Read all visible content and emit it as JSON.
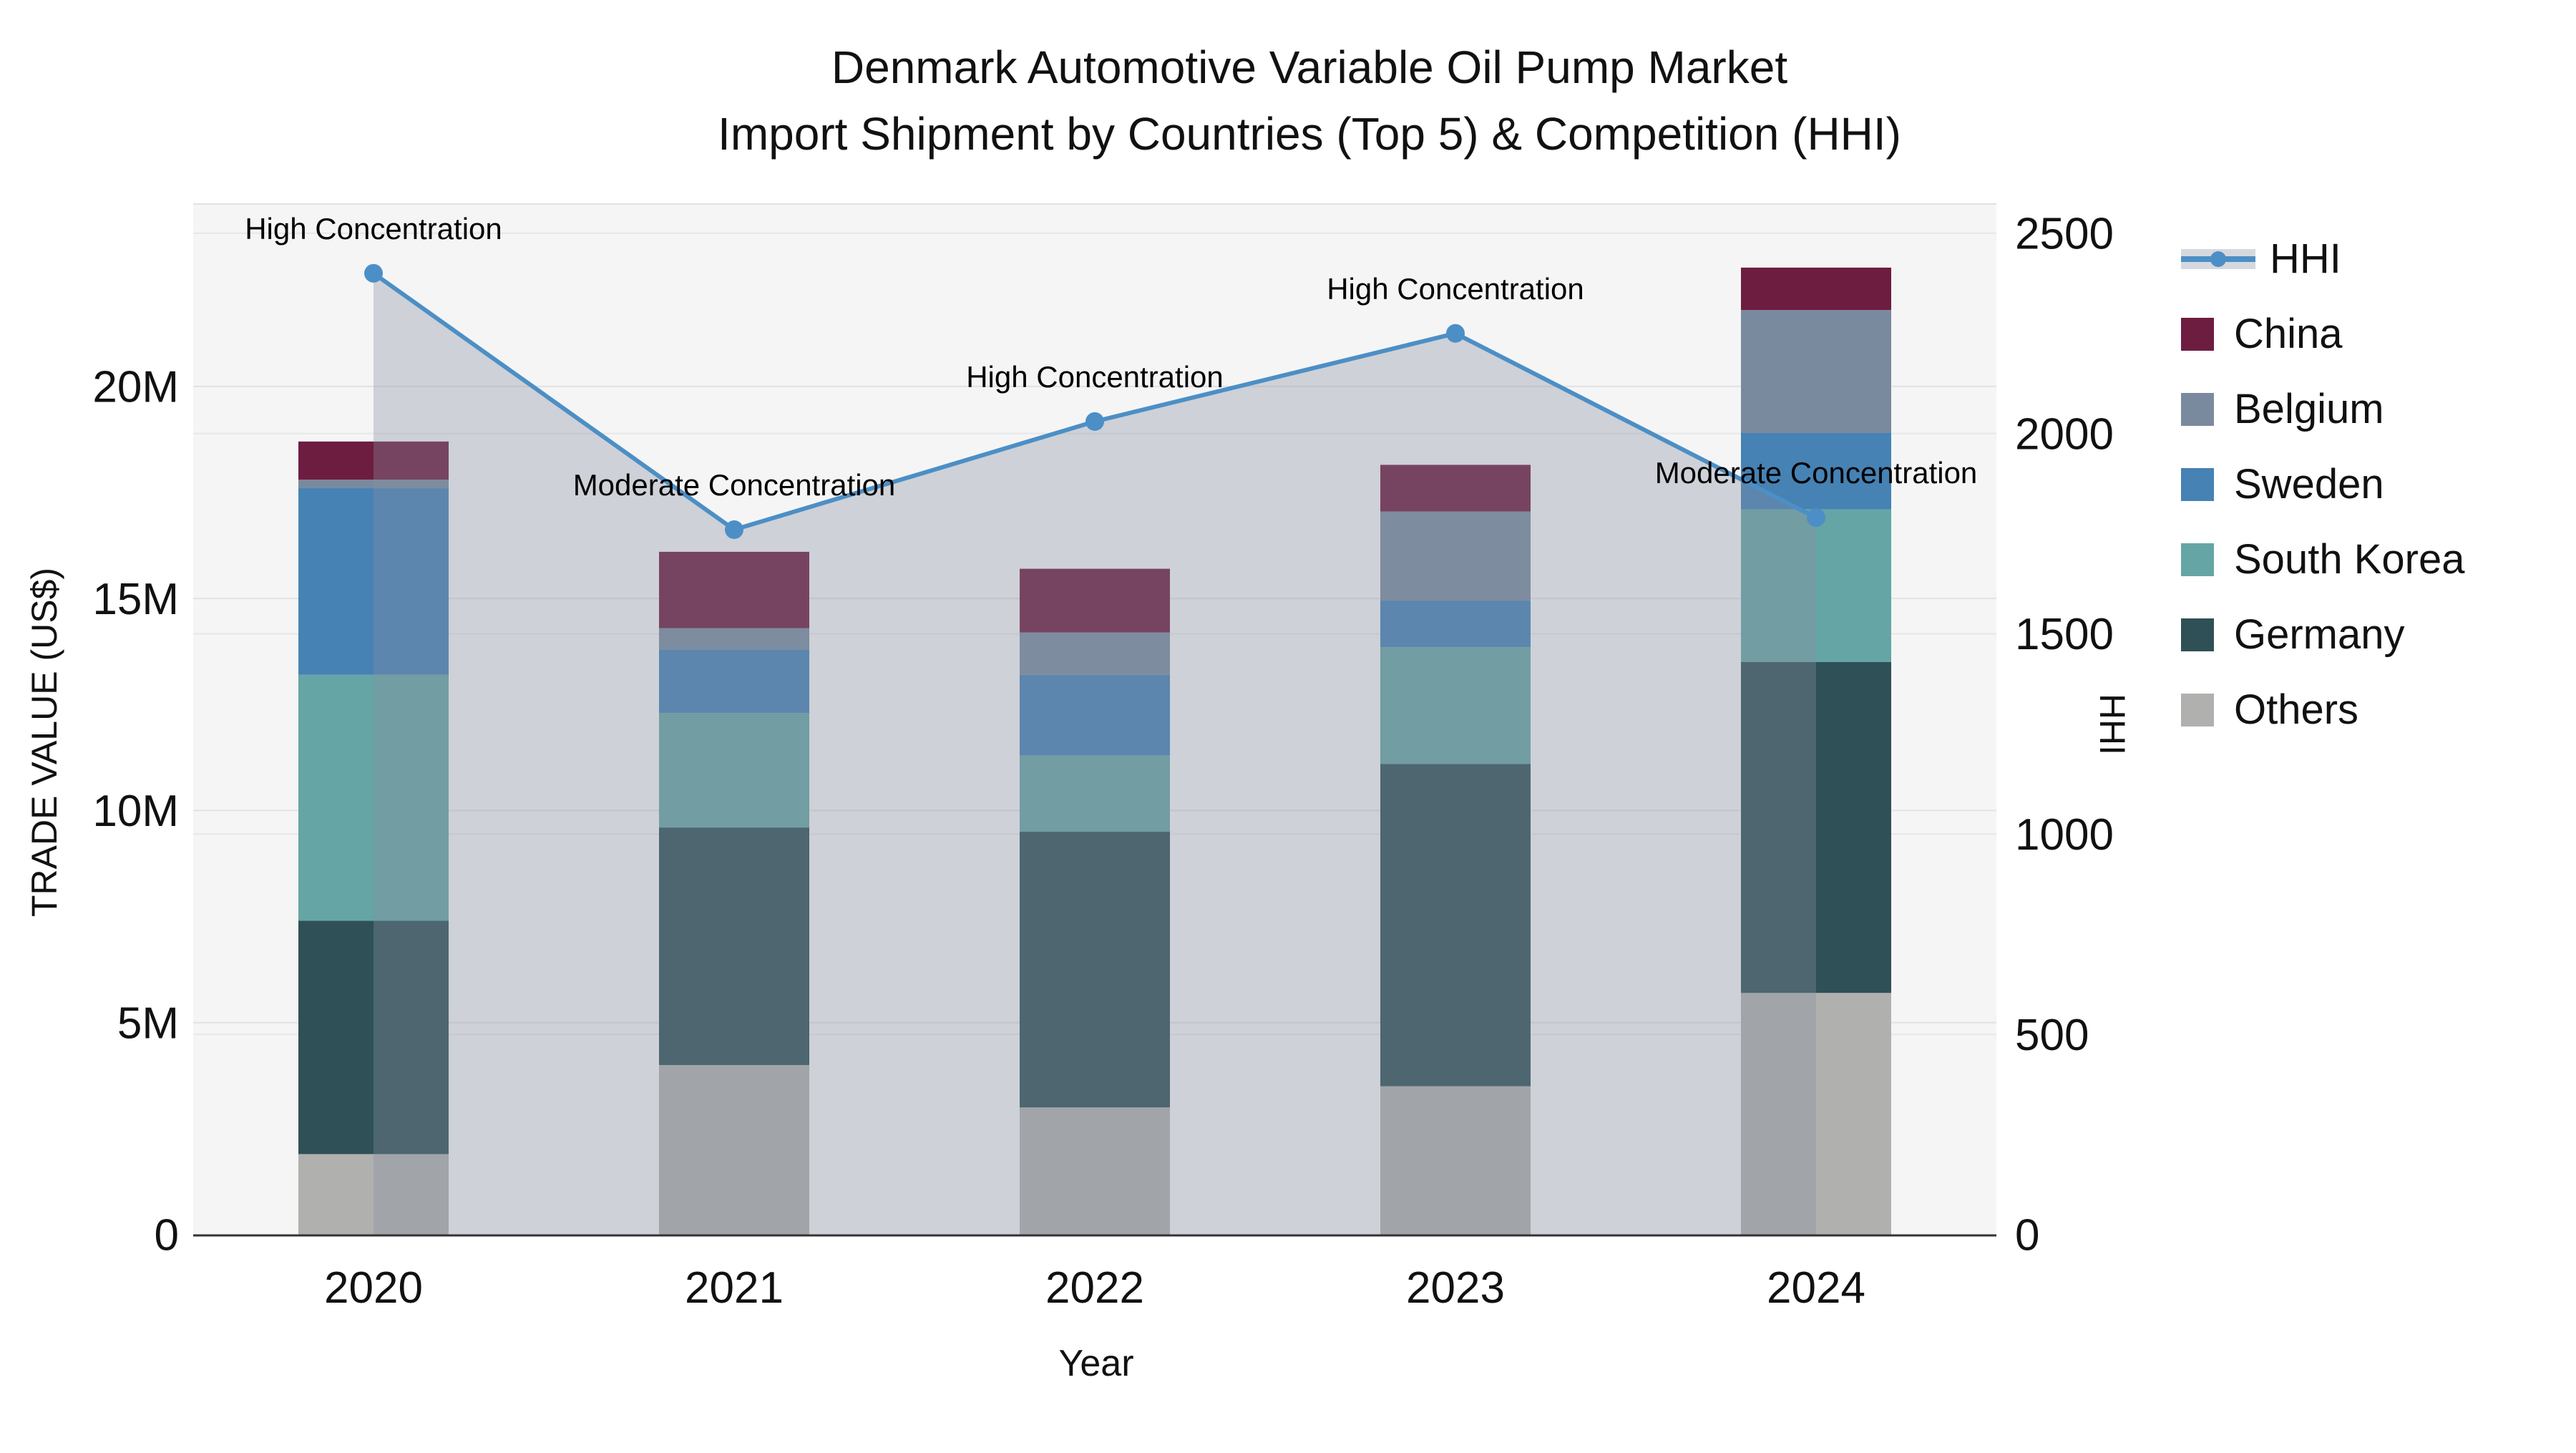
{
  "title": {
    "line1": "Denmark Automotive Variable Oil Pump Market",
    "line2": "Import Shipment by Countries (Top 5) & Competition (HHI)"
  },
  "axes": {
    "left": {
      "title": "TRADE VALUE (US$)",
      "tick_labels": [
        "0",
        "5M",
        "10M",
        "15M",
        "20M"
      ],
      "tick_values": [
        0,
        5,
        10,
        15,
        20
      ],
      "range": [
        0,
        24.3
      ]
    },
    "right": {
      "title": "HHI",
      "tick_labels": [
        "0",
        "500",
        "1000",
        "1500",
        "2000",
        "2500"
      ],
      "tick_values": [
        0,
        500,
        1000,
        1500,
        2000,
        2500
      ],
      "range": [
        0,
        2573
      ]
    },
    "x": {
      "title": "Year",
      "categories": [
        "2020",
        "2021",
        "2022",
        "2023",
        "2024"
      ]
    }
  },
  "legend": {
    "items": [
      {
        "label": "HHI",
        "type": "line",
        "color": "#4C8FC6"
      },
      {
        "label": "China",
        "type": "swatch",
        "color": "#6D1D40"
      },
      {
        "label": "Belgium",
        "type": "swatch",
        "color": "#7A8A9E"
      },
      {
        "label": "Sweden",
        "type": "swatch",
        "color": "#4682B4"
      },
      {
        "label": "South Korea",
        "type": "swatch",
        "color": "#66A5A5"
      },
      {
        "label": "Germany",
        "type": "swatch",
        "color": "#2F5056"
      },
      {
        "label": "Others",
        "type": "swatch",
        "color": "#B0B1AF"
      }
    ]
  },
  "chart_data": {
    "type": "combo stacked-bar + line",
    "title": "Denmark Automotive Variable Oil Pump Market — Import Shipment by Countries (Top 5) & Competition (HHI)",
    "categories": [
      "2020",
      "2021",
      "2022",
      "2023",
      "2024"
    ],
    "bar_value_unit": "million US$",
    "stack_order_bottom_to_top": [
      "Others",
      "Germany",
      "South Korea",
      "Sweden",
      "Belgium",
      "China"
    ],
    "series": [
      {
        "name": "Others",
        "color": "#B0B1AF",
        "values": [
          1.9,
          4.0,
          3.0,
          3.5,
          5.7
        ]
      },
      {
        "name": "Germany",
        "color": "#2F5056",
        "values": [
          5.5,
          5.6,
          6.5,
          7.6,
          7.8
        ]
      },
      {
        "name": "South Korea",
        "color": "#66A5A5",
        "values": [
          5.8,
          2.7,
          1.8,
          2.75,
          3.6
        ]
      },
      {
        "name": "Sweden",
        "color": "#4682B4",
        "values": [
          4.4,
          1.5,
          1.9,
          1.1,
          1.8
        ]
      },
      {
        "name": "Belgium",
        "color": "#7A8A9E",
        "values": [
          0.2,
          0.5,
          1.0,
          2.1,
          2.9
        ]
      },
      {
        "name": "China",
        "color": "#6D1D40",
        "values": [
          0.9,
          1.8,
          1.5,
          1.1,
          1.0
        ]
      }
    ],
    "bar_totals": [
      18.7,
      16.1,
      15.7,
      18.15,
      22.8
    ],
    "hhi": {
      "name": "HHI",
      "line_color": "#4C8FC6",
      "area_fill": "rgba(135,142,160,0.35)",
      "values": [
        2400,
        1760,
        2030,
        2250,
        1790
      ],
      "annotations": [
        "High Concentration",
        "Moderate Concentration",
        "High Concentration",
        "High Concentration",
        "Moderate Concentration"
      ]
    },
    "grid": "both axes, light gray",
    "legend_position": "right",
    "plot_background": "#F5F5F5"
  }
}
